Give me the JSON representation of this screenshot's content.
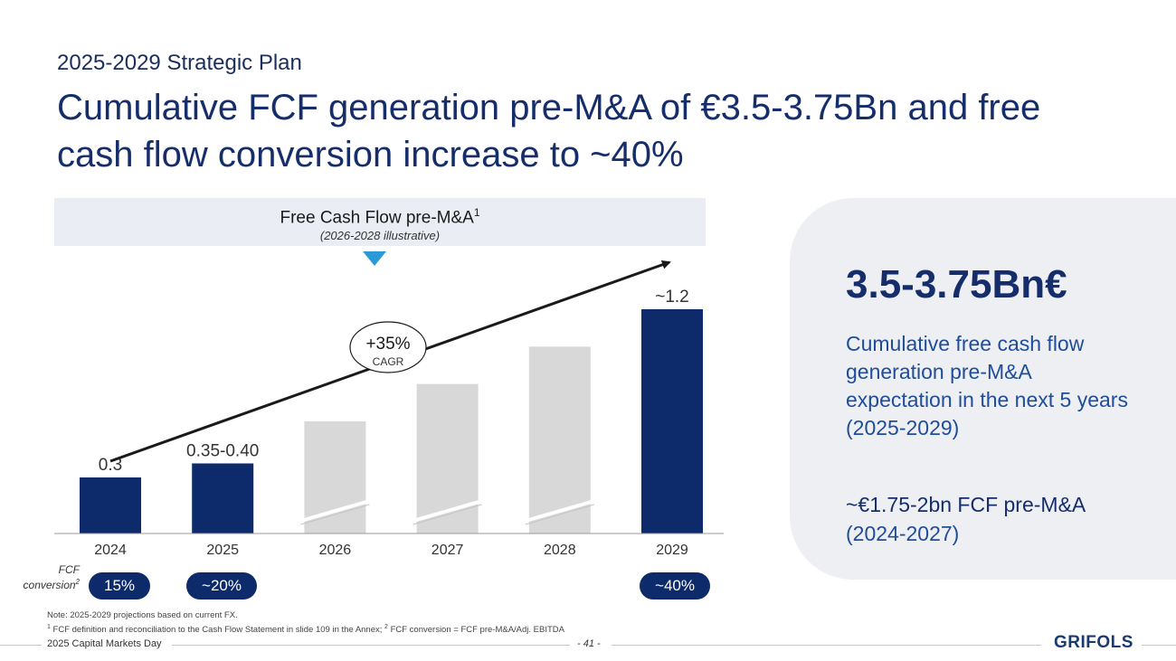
{
  "header": {
    "subtitle": "2025-2029 Strategic Plan",
    "title": "Cumulative FCF generation pre-M&A of €3.5-3.75Bn and free cash flow conversion increase to ~40%"
  },
  "chart_header": {
    "title": "Free Cash Flow pre-M&A",
    "title_sup": "1",
    "subtitle": "(2026-2028 illustrative)"
  },
  "chart_data": {
    "type": "bar",
    "title": "Free Cash Flow pre-M&A",
    "subtitle": "(2026-2028 illustrative)",
    "categories": [
      "2024",
      "2025",
      "2026",
      "2027",
      "2028",
      "2029"
    ],
    "values": [
      0.3,
      0.375,
      0.6,
      0.8,
      1.0,
      1.2
    ],
    "data_labels": [
      "0.3",
      "0.35-0.40",
      "",
      "",
      "",
      "~1.2"
    ],
    "illustrative": [
      false,
      false,
      true,
      true,
      true,
      false
    ],
    "ylim": [
      0,
      1.2
    ],
    "xlabel": "",
    "ylabel": "",
    "grid": false,
    "annotation": {
      "text": "+35%",
      "subtext": "CAGR"
    },
    "colors": {
      "actual": "#0d2b6b",
      "illustrative": "#d8d8d8",
      "arrow": "#1a1a1a",
      "pointer": "#2a9ad6"
    }
  },
  "fcf_conversion": {
    "label": "FCF conversion",
    "label_sup": "2",
    "pills": [
      {
        "year": "2024",
        "value": "15%"
      },
      {
        "year": "2025",
        "value": "~20%"
      },
      {
        "year": "2029",
        "value": "~40%"
      }
    ]
  },
  "side_panel": {
    "big_value": "3.5-3.75Bn€",
    "description": "Cumulative free cash flow generation pre-M&A expectation in the next 5 years (2025-2029)",
    "sub_line1": "~€1.75-2bn FCF pre-M&A",
    "sub_line2": "(2024-2027)"
  },
  "notes": {
    "line1": "Note: 2025-2029 projections based on current FX.",
    "sup1": "1",
    "line2a": " FCF definition and reconciliation to the Cash Flow Statement in slide 109 in the Annex; ",
    "sup2": "2",
    "line2b": " FCF conversion = FCF pre-M&A/Adj. EBITDA"
  },
  "footer": {
    "event": "2025 Capital Markets Day",
    "page": "- 41 -",
    "logo": "GRIFOLS"
  }
}
